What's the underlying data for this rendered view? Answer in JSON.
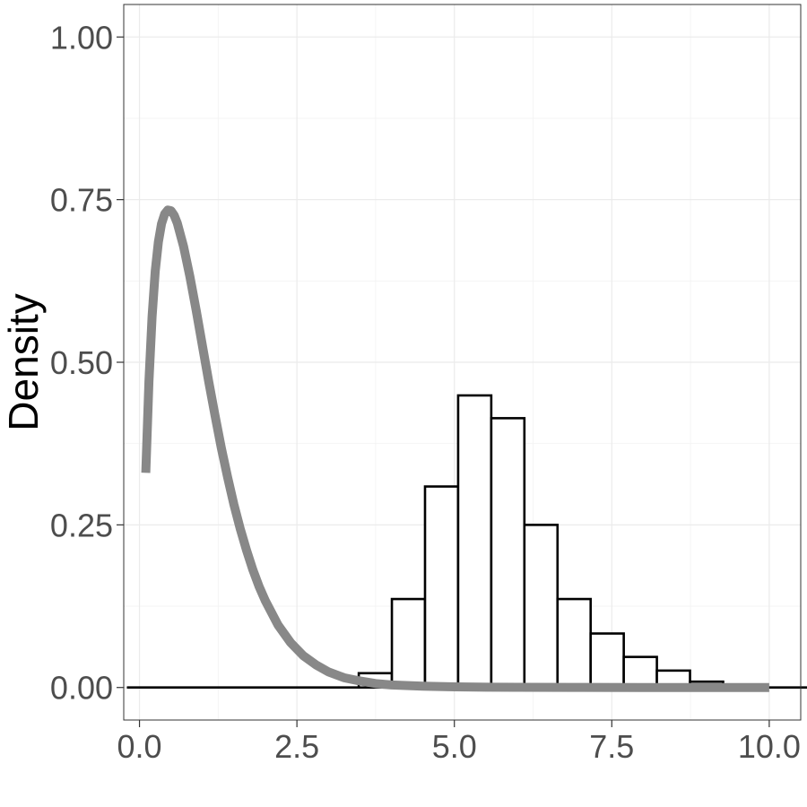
{
  "chart_data": {
    "type": "histogram",
    "title": "",
    "xlabel": "",
    "ylabel": "Density",
    "xlim": [
      -0.25,
      10.5
    ],
    "ylim": [
      -0.05,
      1.05
    ],
    "x_ticks": [
      0.0,
      2.5,
      5.0,
      7.5,
      10.0
    ],
    "x_tick_labels": [
      "0.0",
      "2.5",
      "5.0",
      "7.5",
      "10.0"
    ],
    "y_ticks": [
      0.0,
      0.25,
      0.5,
      0.75,
      1.0
    ],
    "y_tick_labels": [
      "0.00",
      "0.25",
      "0.50",
      "0.75",
      "1.00"
    ],
    "grid": true,
    "legend": "none",
    "histogram": {
      "bin_width": 0.526,
      "x_start": -0.2,
      "densities": [
        0,
        0,
        0,
        0,
        0,
        0.001,
        0.001,
        0.022,
        0.136,
        0.309,
        0.449,
        0.414,
        0.25,
        0.136,
        0.083,
        0.047,
        0.026,
        0.009,
        0.004,
        0.001,
        0.0005
      ],
      "fill": "#ffffff",
      "outline": "#000000"
    },
    "density_curve": {
      "x": [
        0.1,
        0.15,
        0.2,
        0.25,
        0.3,
        0.35,
        0.4,
        0.45,
        0.5,
        0.55,
        0.6,
        0.7,
        0.8,
        0.9,
        1.0,
        1.1,
        1.2,
        1.3,
        1.4,
        1.5,
        1.6,
        1.7,
        1.8,
        1.9,
        2.0,
        2.2,
        2.4,
        2.6,
        2.8,
        3.0,
        3.25,
        3.5,
        3.75,
        4.0,
        4.5,
        5.0,
        5.5,
        6.0,
        7.0,
        8.0,
        9.0,
        10.0
      ],
      "y": [
        0.33,
        0.47,
        0.57,
        0.64,
        0.685,
        0.713,
        0.728,
        0.734,
        0.733,
        0.726,
        0.714,
        0.678,
        0.632,
        0.58,
        0.525,
        0.47,
        0.418,
        0.368,
        0.323,
        0.281,
        0.244,
        0.211,
        0.181,
        0.155,
        0.133,
        0.096,
        0.069,
        0.049,
        0.035,
        0.024,
        0.015,
        0.01,
        0.006,
        0.004,
        0.002,
        0.001,
        0.0005,
        0.0003,
        0.0001,
        0.0,
        0.0,
        0.0
      ],
      "color": "#888888"
    }
  }
}
